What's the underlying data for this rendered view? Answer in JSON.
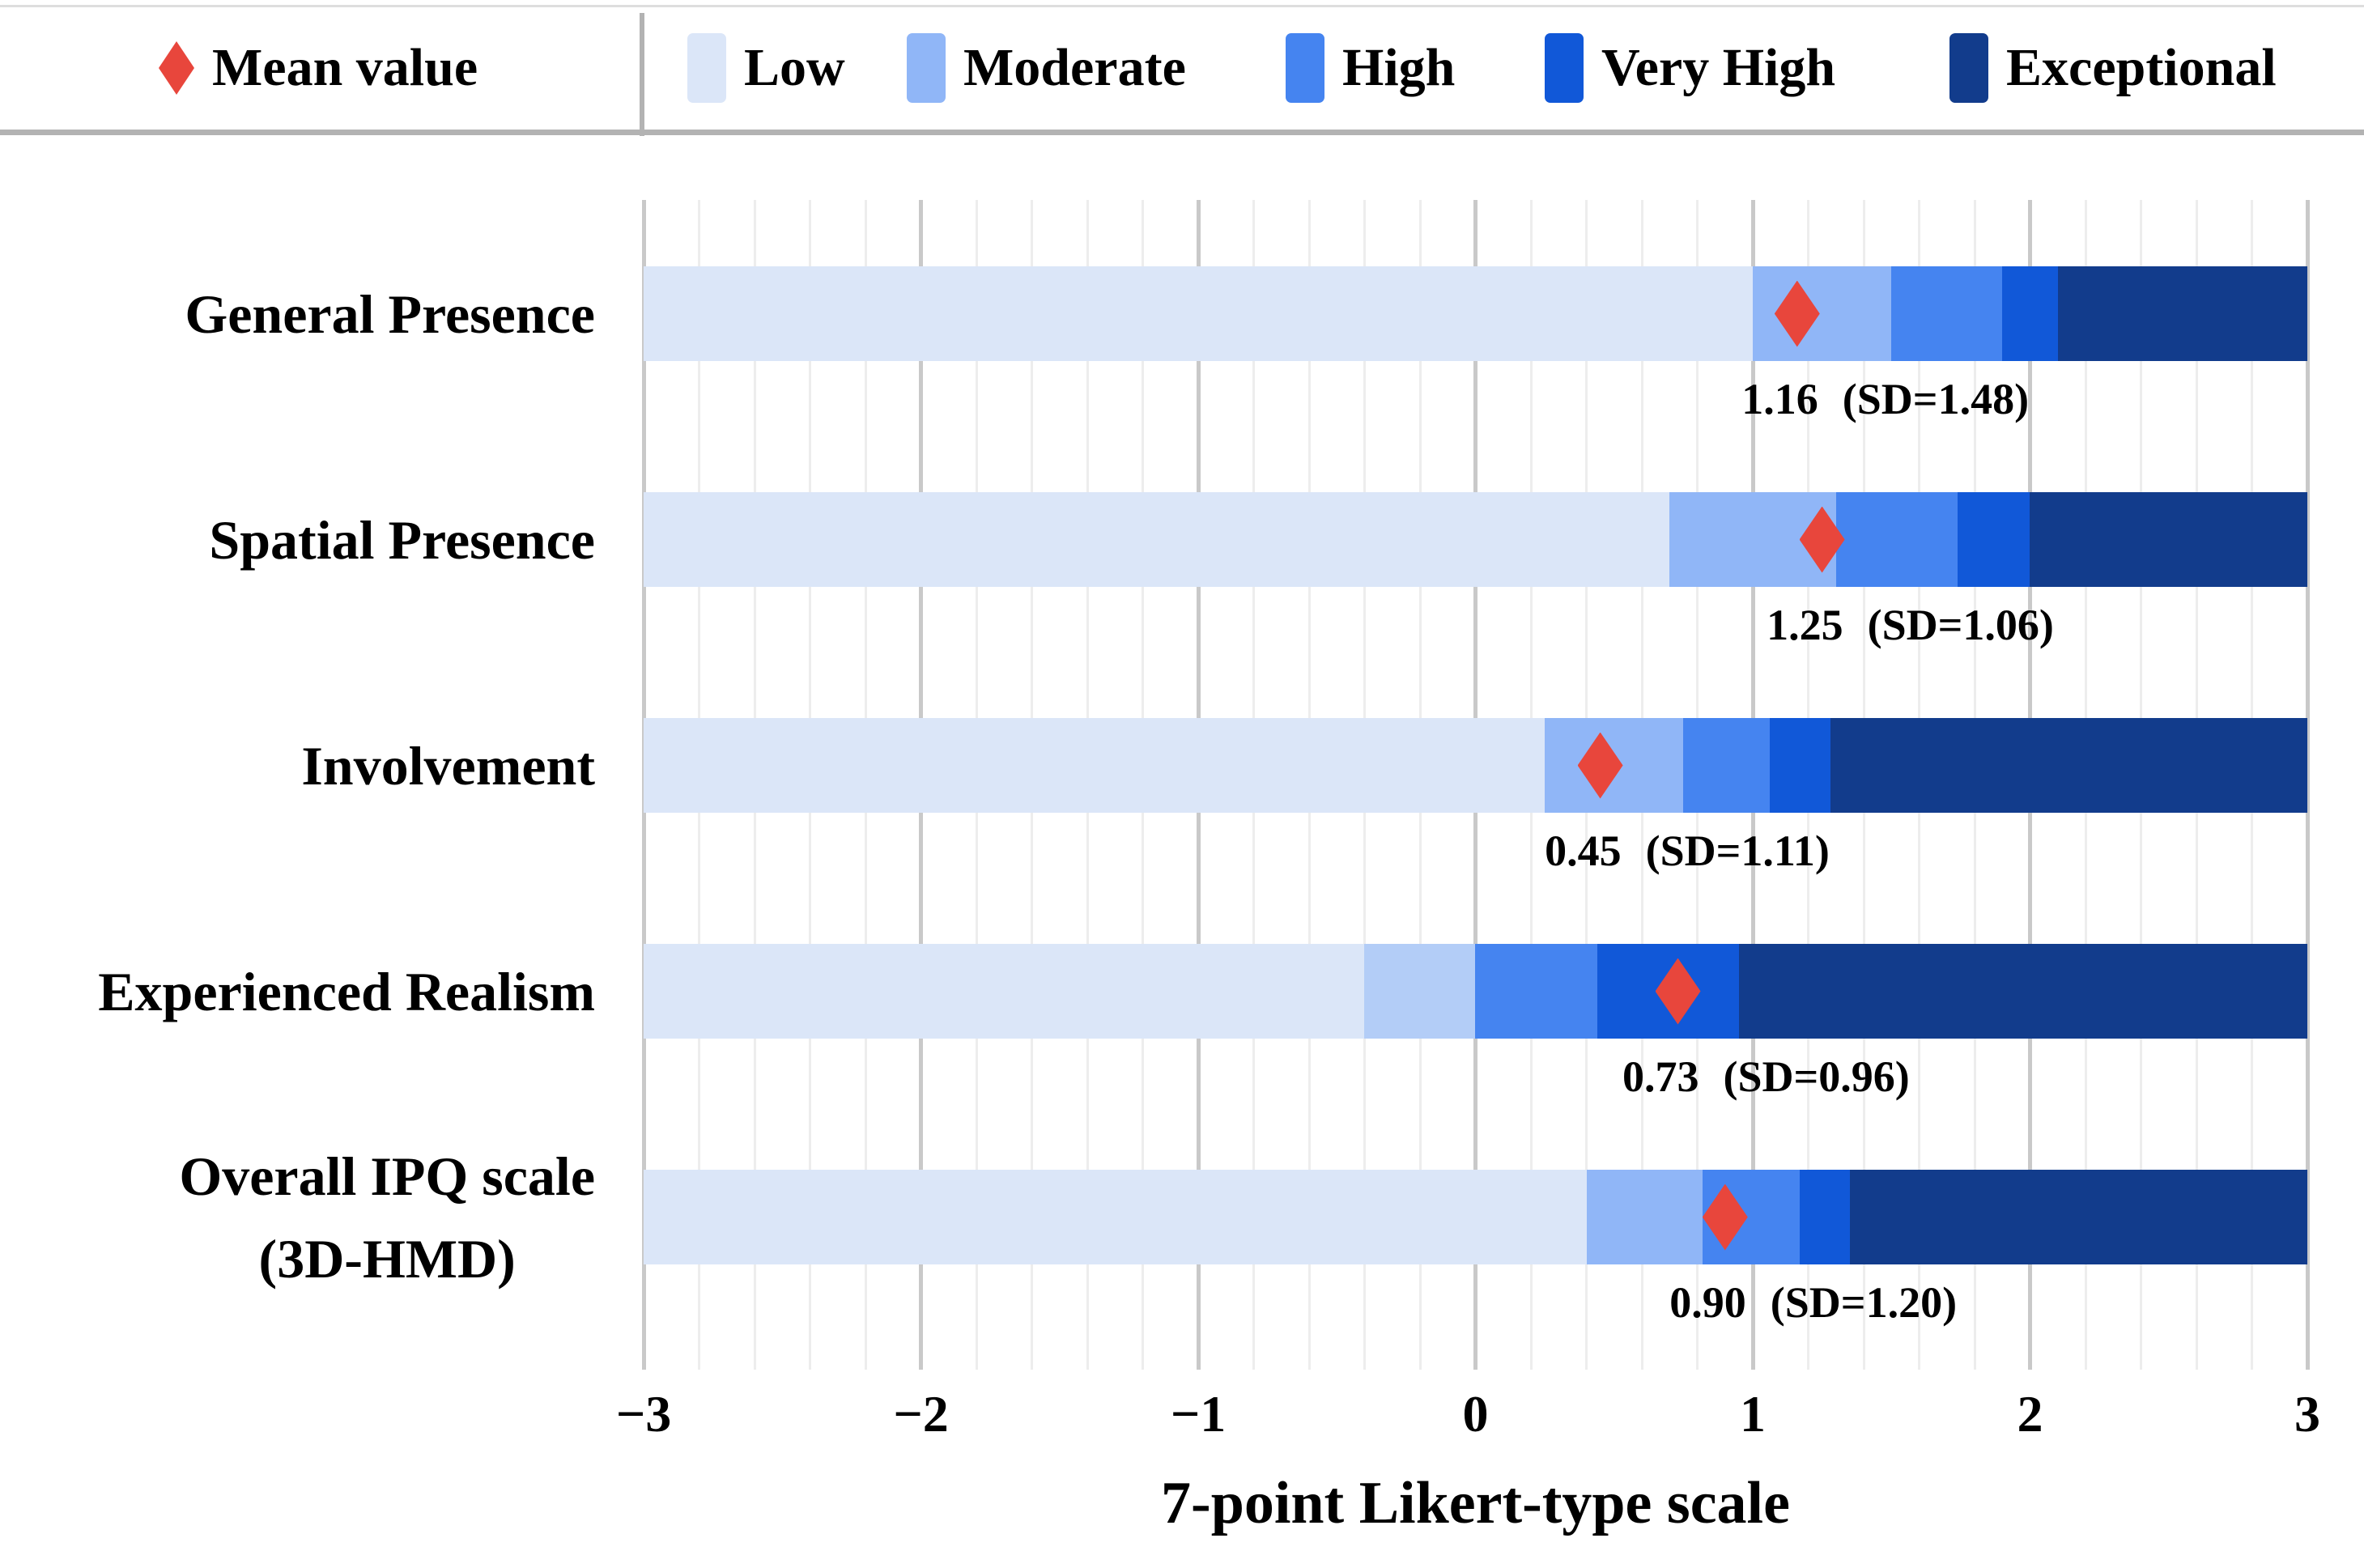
{
  "legend": {
    "mean_label": "Mean value",
    "mean_marker_color": "#e8463c",
    "items": [
      {
        "label": "Low",
        "color": "#dbe6f8"
      },
      {
        "label": "Moderate",
        "color": "#90b6f7"
      },
      {
        "label": "High",
        "color": "#4584f0"
      },
      {
        "label": "Very High",
        "color": "#1158d8"
      },
      {
        "label": "Exceptional",
        "color": "#123c8c"
      }
    ]
  },
  "chart_data": {
    "type": "bar",
    "subtype": "horizontal-stacked-likert",
    "xlabel": "7-point Likert-type scale",
    "xlim": [
      -3,
      3
    ],
    "x_ticks": [
      -3,
      -2,
      -1,
      0,
      1,
      2,
      3
    ],
    "x_tick_labels": [
      "−3",
      "−2",
      "−1",
      "0",
      "1",
      "2",
      "3"
    ],
    "minor_grid_step": 0.2,
    "major_grid_step": 1,
    "grid": true,
    "legend_position": "top",
    "series_names": [
      "Low",
      "Moderate",
      "High",
      "Very High",
      "Exceptional"
    ],
    "categories": [
      "General Presence",
      "Spatial Presence",
      "Involvement",
      "Experienced Realism",
      "Overall IPQ scale (3D-HMD)"
    ],
    "rows": [
      {
        "category_lines": [
          "General Presence"
        ],
        "mean": 1.16,
        "sd": 1.48,
        "mean_label": "1.16",
        "sd_label": "(SD=1.48)",
        "boundaries": [
          -3,
          1.0,
          1.5,
          1.9,
          2.1,
          3
        ]
      },
      {
        "category_lines": [
          "Spatial Presence"
        ],
        "mean": 1.25,
        "sd": 1.06,
        "mean_label": "1.25",
        "sd_label": "(SD=1.06)",
        "boundaries": [
          -3,
          0.7,
          1.3,
          1.74,
          2.0,
          3
        ]
      },
      {
        "category_lines": [
          "Involvement"
        ],
        "mean": 0.45,
        "sd": 1.11,
        "mean_label": "0.45",
        "sd_label": "(SD=1.11)",
        "boundaries": [
          -3,
          0.25,
          0.75,
          1.06,
          1.28,
          3
        ]
      },
      {
        "category_lines": [
          "Experienced Realism"
        ],
        "mean": 0.73,
        "sd": 0.96,
        "mean_label": "0.73",
        "sd_label": "(SD=0.96)",
        "boundaries": [
          -3,
          -0.4,
          0.0,
          0.44,
          0.95,
          3
        ],
        "segment_colors": [
          "#dbe6f8",
          "#b3cdf7",
          "#4584f0",
          "#1158d8",
          "#123c8c"
        ]
      },
      {
        "category_lines": [
          "Overall IPQ scale",
          "(3D-HMD)"
        ],
        "mean": 0.9,
        "sd": 1.2,
        "mean_label": "0.90",
        "sd_label": "(SD=1.20)",
        "boundaries": [
          -3,
          0.4,
          0.82,
          1.17,
          1.35,
          3
        ]
      }
    ]
  },
  "colors": {
    "grid_minor": "#ededed",
    "grid_major": "#c9c9c9",
    "legend_rule": "#b3b3b3",
    "text": "#000000",
    "background": "#ffffff"
  }
}
